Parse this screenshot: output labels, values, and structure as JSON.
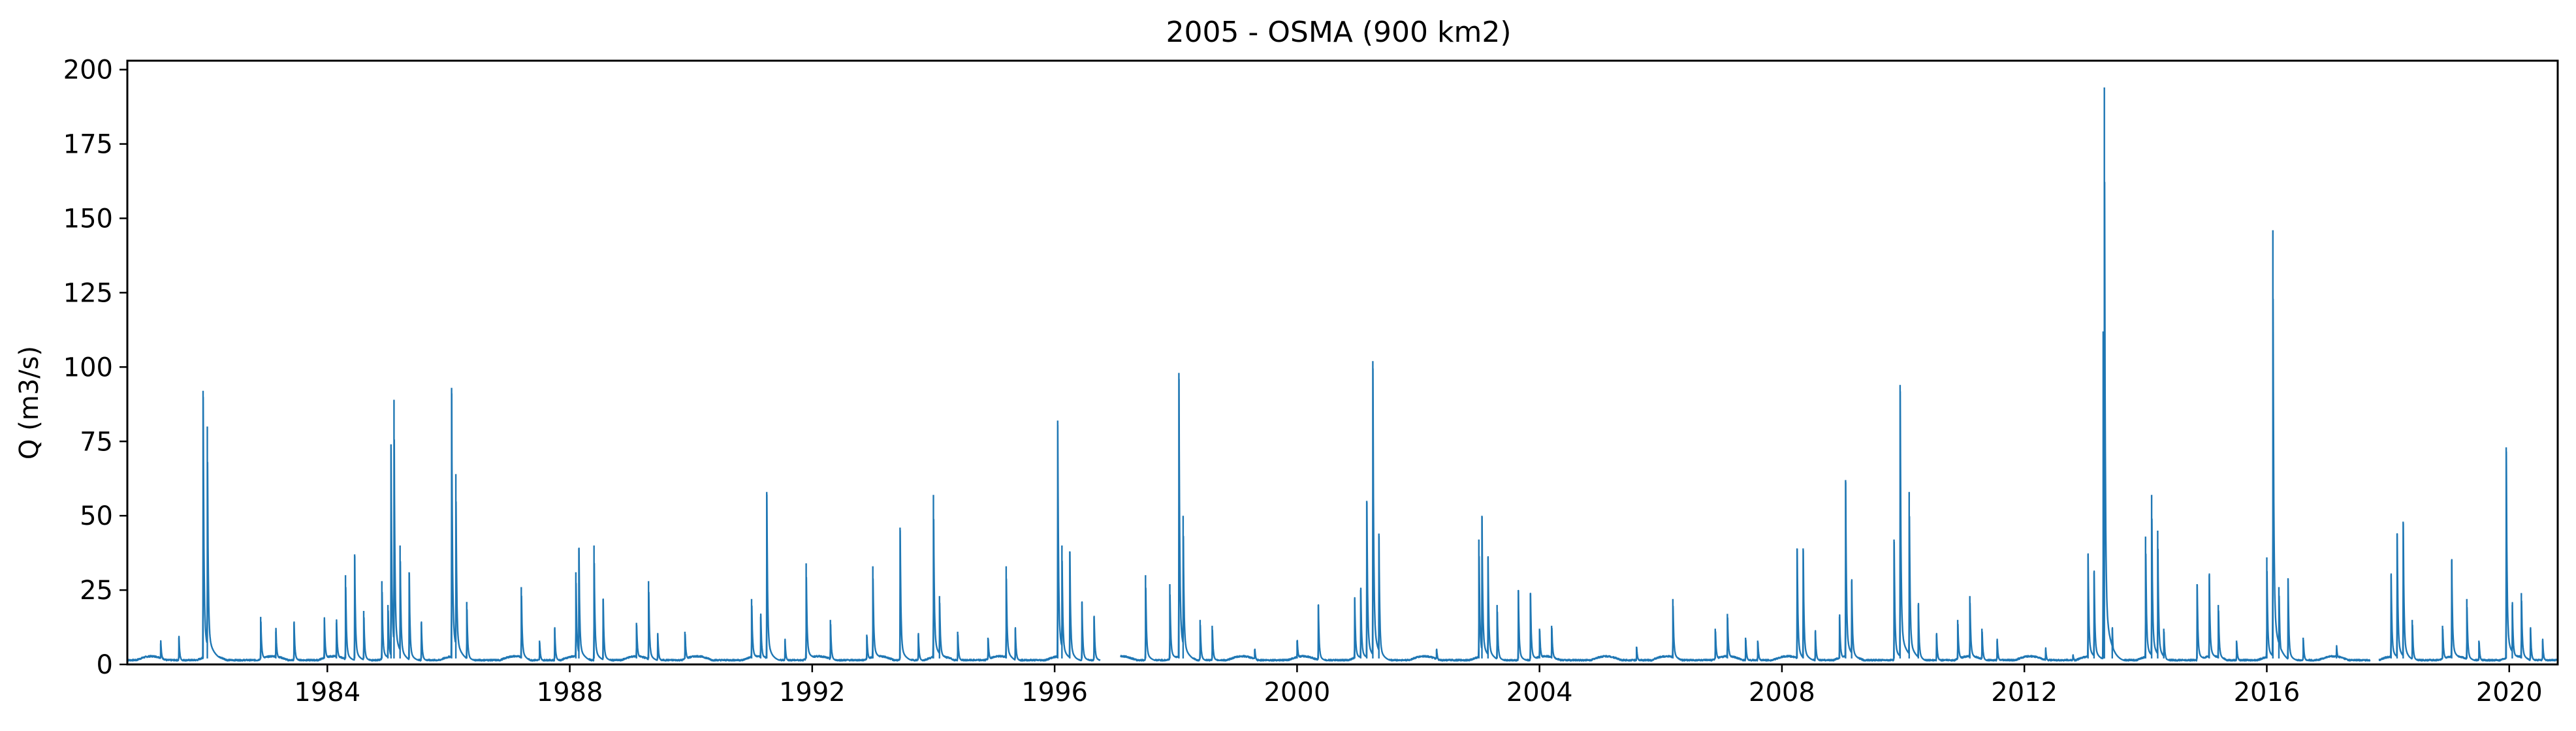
{
  "chart_data": {
    "type": "line",
    "title": "2005 - OSMA (900 km2)",
    "xlabel": "",
    "ylabel": "Q (m3/s)",
    "xlim": [
      1980.7,
      2020.8
    ],
    "ylim": [
      0,
      203
    ],
    "x_ticks": [
      "1984",
      "1988",
      "1992",
      "1996",
      "2000",
      "2004",
      "2008",
      "2012",
      "2016",
      "2020"
    ],
    "y_ticks": [
      "0",
      "25",
      "50",
      "75",
      "100",
      "125",
      "150",
      "175",
      "200"
    ],
    "grid": false,
    "series_color": "#1f77b4",
    "series": [
      {
        "name": "",
        "peaks": [
          [
            1981.25,
            7
          ],
          [
            1981.55,
            9
          ],
          [
            1981.95,
            92
          ],
          [
            1982.02,
            80
          ],
          [
            1982.9,
            16
          ],
          [
            1983.15,
            11
          ],
          [
            1983.45,
            14
          ],
          [
            1983.95,
            15
          ],
          [
            1984.15,
            14
          ],
          [
            1984.3,
            30
          ],
          [
            1984.45,
            37
          ],
          [
            1984.6,
            18
          ],
          [
            1984.9,
            28
          ],
          [
            1985.0,
            20
          ],
          [
            1985.05,
            74
          ],
          [
            1985.1,
            89
          ],
          [
            1985.2,
            40
          ],
          [
            1985.35,
            31
          ],
          [
            1985.55,
            14
          ],
          [
            1986.05,
            93
          ],
          [
            1986.12,
            64
          ],
          [
            1986.3,
            21
          ],
          [
            1987.2,
            26
          ],
          [
            1987.5,
            8
          ],
          [
            1987.75,
            12
          ],
          [
            1988.1,
            31
          ],
          [
            1988.15,
            39
          ],
          [
            1988.4,
            40
          ],
          [
            1988.55,
            22
          ],
          [
            1989.1,
            14
          ],
          [
            1989.3,
            28
          ],
          [
            1989.45,
            10
          ],
          [
            1989.9,
            11
          ],
          [
            1991.0,
            22
          ],
          [
            1991.15,
            16
          ],
          [
            1991.25,
            58
          ],
          [
            1991.55,
            8
          ],
          [
            1991.9,
            34
          ],
          [
            1992.3,
            15
          ],
          [
            1992.9,
            10
          ],
          [
            1993.0,
            33
          ],
          [
            1993.45,
            46
          ],
          [
            1993.75,
            10
          ],
          [
            1994.0,
            57
          ],
          [
            1994.1,
            23
          ],
          [
            1994.4,
            11
          ],
          [
            1994.9,
            9
          ],
          [
            1995.2,
            33
          ],
          [
            1995.35,
            12
          ],
          [
            1996.05,
            82
          ],
          [
            1996.12,
            40
          ],
          [
            1996.25,
            38
          ],
          [
            1996.45,
            21
          ],
          [
            1996.65,
            16
          ],
          [
            1997.5,
            30
          ],
          [
            1997.9,
            27
          ],
          [
            1998.05,
            98
          ],
          [
            1998.12,
            50
          ],
          [
            1998.4,
            15
          ],
          [
            1998.6,
            13
          ],
          [
            1999.3,
            5
          ],
          [
            2000.0,
            8
          ],
          [
            2000.35,
            20
          ],
          [
            2000.95,
            22
          ],
          [
            2001.05,
            25
          ],
          [
            2001.15,
            55
          ],
          [
            2001.25,
            102
          ],
          [
            2001.35,
            44
          ],
          [
            2002.3,
            5
          ],
          [
            2003.0,
            42
          ],
          [
            2003.05,
            50
          ],
          [
            2003.15,
            36
          ],
          [
            2003.3,
            20
          ],
          [
            2003.65,
            25
          ],
          [
            2003.85,
            24
          ],
          [
            2004.0,
            12
          ],
          [
            2004.2,
            13
          ],
          [
            2005.6,
            6
          ],
          [
            2006.2,
            22
          ],
          [
            2006.9,
            12
          ],
          [
            2007.1,
            17
          ],
          [
            2007.4,
            9
          ],
          [
            2007.6,
            8
          ],
          [
            2008.25,
            39
          ],
          [
            2008.35,
            39
          ],
          [
            2008.55,
            11
          ],
          [
            2008.95,
            16
          ],
          [
            2009.05,
            62
          ],
          [
            2009.15,
            28
          ],
          [
            2009.85,
            42
          ],
          [
            2009.95,
            94
          ],
          [
            2010.1,
            58
          ],
          [
            2010.25,
            20
          ],
          [
            2010.55,
            10
          ],
          [
            2010.9,
            15
          ],
          [
            2011.1,
            23
          ],
          [
            2011.3,
            12
          ],
          [
            2011.55,
            8
          ],
          [
            2012.35,
            5
          ],
          [
            2012.8,
            3
          ],
          [
            2013.05,
            37
          ],
          [
            2013.15,
            31
          ],
          [
            2013.3,
            112
          ],
          [
            2013.32,
            194
          ],
          [
            2013.45,
            12
          ],
          [
            2014.0,
            43
          ],
          [
            2014.1,
            57
          ],
          [
            2014.2,
            45
          ],
          [
            2014.3,
            12
          ],
          [
            2014.85,
            27
          ],
          [
            2015.05,
            30
          ],
          [
            2015.2,
            20
          ],
          [
            2015.5,
            8
          ],
          [
            2016.0,
            36
          ],
          [
            2016.1,
            146
          ],
          [
            2016.2,
            26
          ],
          [
            2016.35,
            29
          ],
          [
            2016.6,
            9
          ],
          [
            2017.15,
            5
          ],
          [
            2018.05,
            30
          ],
          [
            2018.15,
            44
          ],
          [
            2018.25,
            48
          ],
          [
            2018.4,
            15
          ],
          [
            2018.9,
            13
          ],
          [
            2019.05,
            35
          ],
          [
            2019.3,
            22
          ],
          [
            2019.5,
            8
          ],
          [
            2019.95,
            73
          ],
          [
            2020.05,
            20
          ],
          [
            2020.2,
            24
          ],
          [
            2020.35,
            12
          ],
          [
            2020.55,
            8
          ]
        ],
        "gaps": [
          [
            1996.75,
            1997.08
          ],
          [
            2017.7,
            2017.85
          ]
        ]
      }
    ]
  }
}
